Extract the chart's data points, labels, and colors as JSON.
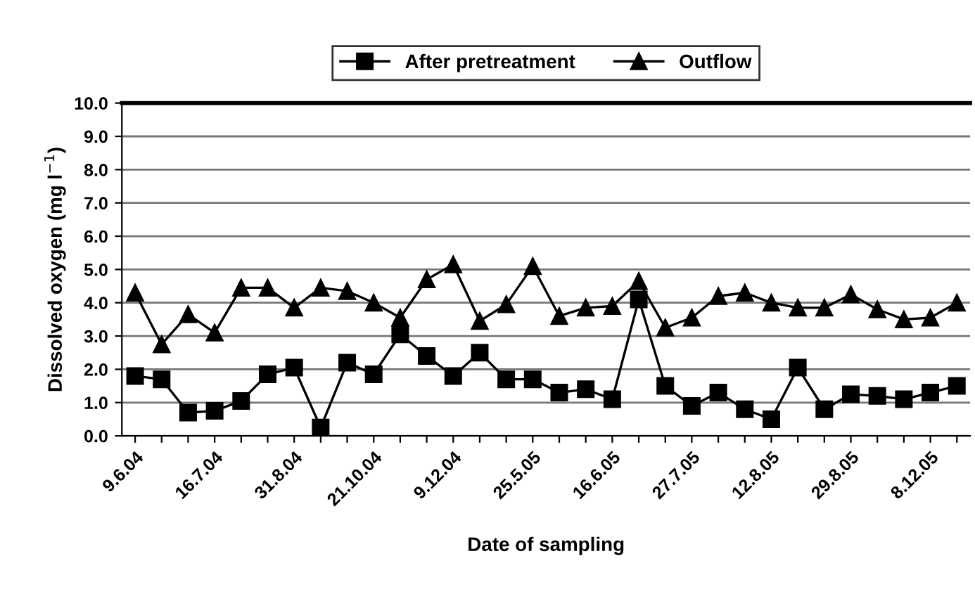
{
  "chart_data": {
    "type": "line",
    "xlabel": "Date of sampling",
    "ylabel": "Dissolved oxygen (mg l$^{−1}$)",
    "categories": [
      "9.6.04",
      null,
      null,
      "16.7.04",
      null,
      null,
      "31.8.04",
      null,
      null,
      "21.10.04",
      null,
      null,
      "9.12.04",
      null,
      null,
      "25.5.05",
      null,
      null,
      "16.6.05",
      null,
      null,
      "27.7.05",
      null,
      null,
      "12.8.05",
      null,
      null,
      "29.8.05",
      null,
      null,
      "8.12.05",
      null
    ],
    "series": [
      {
        "name": "After pretreatment",
        "color": "#000000",
        "marker": "square",
        "values": [
          1.8,
          1.7,
          0.7,
          0.75,
          1.05,
          1.85,
          2.05,
          0.25,
          2.2,
          1.85,
          3.05,
          2.4,
          1.8,
          2.5,
          1.7,
          1.7,
          1.3,
          1.4,
          1.1,
          4.1,
          1.5,
          0.9,
          1.3,
          0.8,
          0.5,
          2.05,
          0.8,
          1.25,
          1.2,
          1.1,
          1.3,
          1.5
        ]
      },
      {
        "name": "Outflow",
        "color": "#000000",
        "marker": "triangle",
        "values": [
          4.3,
          2.75,
          3.65,
          3.1,
          4.45,
          4.45,
          3.85,
          4.45,
          4.35,
          4.0,
          3.55,
          4.7,
          5.15,
          3.45,
          3.95,
          5.1,
          3.6,
          3.85,
          3.9,
          4.65,
          3.25,
          3.55,
          4.2,
          4.3,
          4.0,
          3.85,
          3.85,
          4.25,
          3.8,
          3.5,
          3.55,
          4.0
        ]
      }
    ],
    "ylim": [
      0,
      10
    ],
    "yticks": [
      {
        "value": 0,
        "label": "0.0"
      },
      {
        "value": 1,
        "label": "1.0"
      },
      {
        "value": 2,
        "label": "2.0"
      },
      {
        "value": 3,
        "label": "3.0"
      },
      {
        "value": 4,
        "label": "4.0"
      },
      {
        "value": 5,
        "label": "5.0"
      },
      {
        "value": 6,
        "label": "6.0"
      },
      {
        "value": 7,
        "label": "7.0"
      },
      {
        "value": 8,
        "label": "8.0"
      },
      {
        "value": 9,
        "label": "9.0"
      },
      {
        "value": 10,
        "label": "10.0"
      }
    ],
    "grid": "y",
    "legend": "top",
    "line_style": "solid"
  }
}
